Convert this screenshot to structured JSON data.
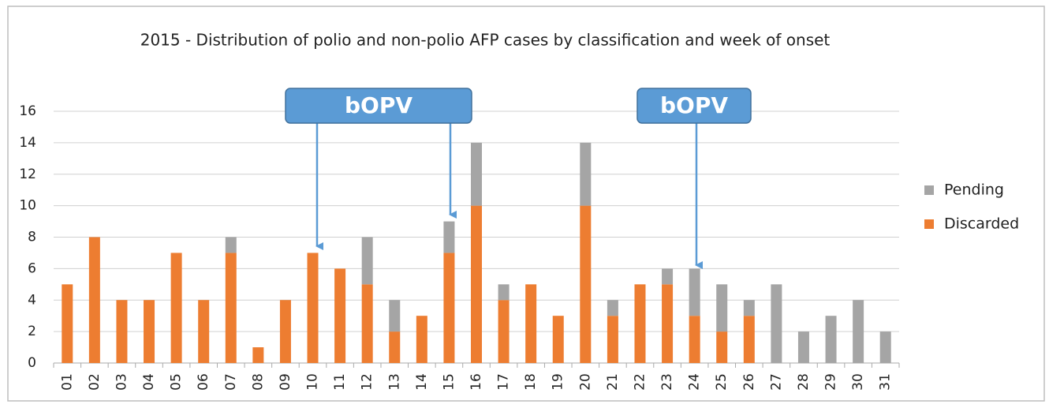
{
  "chart_data": {
    "type": "stacked_bar",
    "title": "2015 - Distribution of polio and non-polio AFP cases by classification and week of onset",
    "categories": [
      "01",
      "02",
      "03",
      "04",
      "05",
      "06",
      "07",
      "08",
      "09",
      "10",
      "11",
      "12",
      "13",
      "14",
      "15",
      "16",
      "17",
      "18",
      "19",
      "20",
      "21",
      "22",
      "23",
      "24",
      "25",
      "26",
      "27",
      "28",
      "29",
      "30",
      "31"
    ],
    "series": [
      {
        "name": "Discarded",
        "color": "#ED7D31",
        "values": [
          5,
          8,
          4,
          4,
          7,
          4,
          7,
          1,
          4,
          7,
          6,
          5,
          2,
          3,
          7,
          10,
          4,
          5,
          3,
          10,
          3,
          5,
          5,
          3,
          2,
          3,
          0,
          0,
          0,
          0,
          0
        ]
      },
      {
        "name": "Pending",
        "color": "#A5A5A5",
        "values": [
          0,
          0,
          0,
          0,
          0,
          0,
          1,
          0,
          0,
          0,
          0,
          3,
          2,
          0,
          2,
          4,
          1,
          0,
          0,
          4,
          1,
          0,
          1,
          3,
          3,
          1,
          5,
          2,
          3,
          4,
          2
        ]
      }
    ],
    "ylim": [
      0,
      16
    ],
    "yticks": [
      0,
      2,
      4,
      6,
      8,
      10,
      12,
      14,
      16
    ],
    "grid": true,
    "legend": "right",
    "annotations": [
      "bOPV",
      "bOPV"
    ]
  }
}
